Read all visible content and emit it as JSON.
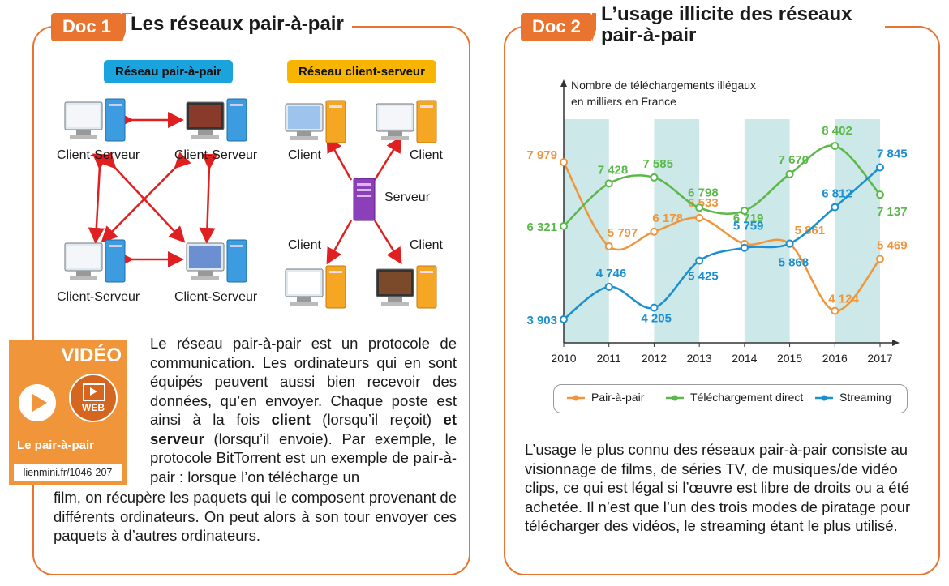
{
  "doc1": {
    "tag": "Doc 1",
    "title": "Les réseaux pair-à-pair",
    "p2p_label": "Réseau pair-à-pair",
    "cs_label": "Réseau client-serveur",
    "p2p_node_label": "Client-Serveur",
    "client_label": "Client",
    "server_label": "Serveur",
    "video": {
      "heading": "VIDÉO",
      "web": "WEB",
      "name": "Le pair-à-pair",
      "link": "lienmini.fr/1046-207"
    },
    "text": {
      "p1": "Le réseau pair-à-pair est un protocole de communication. Les ordinateurs qui en sont équipés peuvent aussi bien recevoir des données, qu’en envoyer. Chaque poste est ainsi à la fois ",
      "client": "client",
      "p2": " (lorsqu’il reçoit) ",
      "et": "et",
      "serveur": "serveur",
      "p3": " (lorsqu’il envoie). Par exemple, le protocole BitTorrent est un exemple de pair-à-pair : lorsque l’on télécharge un",
      "p4": "film, on récupère les paquets qui le composent provenant de différents ordinateurs. On peut alors à son tour envoyer ces paquets à d’autres ordinateurs."
    }
  },
  "doc2": {
    "tag": "Doc 2",
    "title": "L’usage illicite des réseaux pair-à-pair",
    "text": "L’usage le plus connu des réseaux pair-à-pair consiste au visionnage de films, de séries TV, de musiques/de vidéo clips, ce qui est légal si l’œuvre est libre de droits ou a été achetée. Il n’est que l’un des trois modes de piratage pour télécharger des vidéos, le streaming étant le plus utilisé."
  },
  "colors": {
    "accent": "#e8742f",
    "p2p_pill": "#1aa3dc",
    "cs_pill": "#f7b500",
    "orange": "#f0953a",
    "green": "#5cb84a",
    "blue": "#1b8fcf",
    "band": "#cce8e8"
  },
  "chart_data": {
    "type": "line",
    "ylabel": "Nombre de téléchargements illégaux en milliers en France",
    "x": [
      2010,
      2011,
      2012,
      2013,
      2014,
      2015,
      2016,
      2017
    ],
    "series": [
      {
        "name": "Pair-à-pair",
        "values": [
          7979,
          5797,
          6178,
          6533,
          5861,
          5861,
          4124,
          5469
        ],
        "labels": [
          "7 979",
          "5 797",
          "6 178",
          "6 533",
          "",
          "5 861",
          "4 124",
          "5 469"
        ]
      },
      {
        "name": "Téléchargement direct",
        "values": [
          6321,
          7428,
          7585,
          6798,
          6719,
          7670,
          8402,
          7137
        ],
        "labels": [
          "6 321",
          "7 428",
          "7 585",
          "6 798",
          "6 719",
          "7 670",
          "8 402",
          "7 137"
        ]
      },
      {
        "name": "Streaming",
        "values": [
          3903,
          4746,
          4205,
          5425,
          5759,
          5868,
          6812,
          7845
        ],
        "labels": [
          "3 903",
          "4 746",
          "4 205",
          "5 425",
          "5 759",
          "5 868",
          "6 812",
          "7 845"
        ]
      }
    ]
  }
}
